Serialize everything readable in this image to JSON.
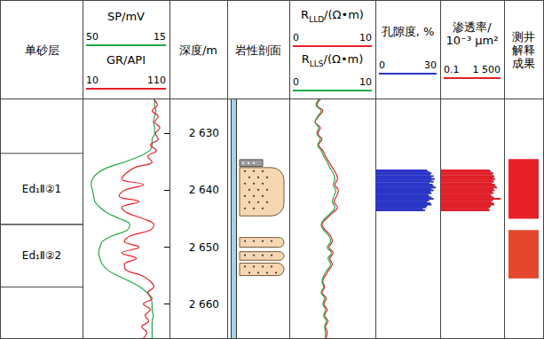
{
  "chart_data": {
    "type": "well_log",
    "ylim": [
      2624,
      2666
    ],
    "yticks": [
      {
        "value": 2630,
        "label": "2 630"
      },
      {
        "value": 2640,
        "label": "2 640"
      },
      {
        "value": 2650,
        "label": "2 650"
      },
      {
        "value": 2660,
        "label": "2 660"
      }
    ],
    "depth_title": "深度/m",
    "zones": {
      "title": "单砂层",
      "intervals": [
        {
          "name": "Ed₁Ⅱ②1",
          "top": 2633.5,
          "bottom": 2646
        },
        {
          "name": "Ed₁Ⅱ②2",
          "top": 2646,
          "bottom": 2657
        }
      ]
    },
    "lithology": {
      "title": "岩性剖面",
      "sand": [
        [
          2636,
          2644.5
        ],
        [
          2648.3,
          2650
        ],
        [
          2650.8,
          2652.3
        ],
        [
          2652.8,
          2655
        ]
      ],
      "silt": [
        [
          2634.6,
          2635.8
        ]
      ]
    },
    "tracks": [
      {
        "type": "line",
        "depth": [
          2624,
          2625,
          2626,
          2627,
          2628,
          2629,
          2630,
          2631,
          2632,
          2633,
          2634,
          2635,
          2636,
          2637,
          2638,
          2639,
          2640,
          2641,
          2642,
          2643,
          2644,
          2645,
          2646,
          2647,
          2648,
          2649,
          2650,
          2651,
          2652,
          2653,
          2654,
          2655,
          2656,
          2657,
          2658,
          2659,
          2660,
          2661,
          2662,
          2663,
          2664,
          2665,
          2666
        ],
        "curves": [
          {
            "name": "SP/mV",
            "color": "#22a845",
            "xlim": [
              50,
              15
            ],
            "xticks": [
              50,
              15
            ],
            "values": [
              21,
              21,
              20.5,
              21,
              21.5,
              21,
              21,
              22,
              22,
              23,
              27,
              33,
              40,
              44,
              46,
              46.5,
              46,
              45.5,
              45,
              43,
              40,
              35,
              31,
              32,
              38,
              42,
              43,
              43.5,
              43,
              42,
              40,
              36,
              31,
              27,
              24,
              22.5,
              22,
              22,
              21.5,
              22,
              22,
              22,
              22
            ]
          },
          {
            "name": "GR/API",
            "color": "#e8202a",
            "xlim": [
              10,
              110
            ],
            "xticks": [
              10,
              110
            ],
            "values": [
              92,
              96,
              90,
              97,
              93,
              99,
              94,
              97,
              88,
              95,
              85,
              90,
              70,
              60,
              55,
              80,
              58,
              52,
              75,
              55,
              62,
              80,
              92,
              88,
              65,
              58,
              75,
              55,
              72,
              58,
              60,
              78,
              88,
              92,
              85,
              90,
              80,
              88,
              82,
              86,
              78,
              84,
              80
            ]
          }
        ]
      },
      {
        "type": "line",
        "depth": [
          2624,
          2625,
          2626,
          2627,
          2628,
          2629,
          2630,
          2631,
          2632,
          2633,
          2634,
          2635,
          2636,
          2637,
          2638,
          2639,
          2640,
          2641,
          2642,
          2643,
          2644,
          2645,
          2646,
          2647,
          2648,
          2649,
          2650,
          2651,
          2652,
          2653,
          2654,
          2655,
          2656,
          2657,
          2658,
          2659,
          2660,
          2661,
          2662,
          2663,
          2664,
          2665,
          2666
        ],
        "curves": [
          {
            "name": {
              "text": "R",
              "sub": "LLD",
              "rest": "/(Ω•m)"
            },
            "color": "#e8202a",
            "xlim": [
              0,
              10
            ],
            "xticks": [
              0,
              10
            ],
            "values": [
              3.6,
              3.2,
              3.9,
              3.4,
              3,
              3.6,
              3.3,
              3.8,
              3.4,
              3.9,
              4.2,
              4.6,
              5,
              5.4,
              5.6,
              5.3,
              5.7,
              5.5,
              5.2,
              5.6,
              5,
              4.3,
              3.8,
              4.2,
              4.8,
              5,
              4.6,
              5.1,
              4.7,
              5,
              4.6,
              4.2,
              3.9,
              4.1,
              3.8,
              4.3,
              4,
              4.4,
              4.1,
              4.5,
              4.2,
              4.4,
              4.3
            ]
          },
          {
            "name": {
              "text": "R",
              "sub": "LLS",
              "rest": "/(Ω•m)"
            },
            "color": "#22a845",
            "xlim": [
              0,
              10
            ],
            "xticks": [
              0,
              10
            ],
            "values": [
              3.4,
              3.1,
              3.7,
              3.3,
              3,
              3.4,
              3.2,
              3.6,
              3.3,
              3.7,
              4,
              4.4,
              4.7,
              5.1,
              5.3,
              5.1,
              5.4,
              5.2,
              5,
              5.3,
              4.8,
              4.1,
              3.7,
              4,
              4.6,
              4.8,
              4.4,
              4.9,
              4.5,
              4.8,
              4.4,
              4,
              3.8,
              4,
              3.7,
              4.1,
              3.9,
              4.2,
              4,
              4.3,
              4.1,
              4.2,
              4.2
            ]
          }
        ]
      },
      {
        "type": "bar",
        "depth": [
          2636.5,
          2636.75,
          2637,
          2637.25,
          2637.5,
          2637.75,
          2638,
          2638.25,
          2638.5,
          2638.75,
          2639,
          2639.25,
          2639.5,
          2639.75,
          2640,
          2640.25,
          2640.5,
          2640.75,
          2641,
          2641.25,
          2641.5,
          2641.75,
          2642,
          2642.25,
          2642.5,
          2642.75,
          2643,
          2643.25,
          2643.5
        ],
        "curves": [
          {
            "name": "孔隙度, %",
            "color": "#2b35c8",
            "xlim": [
              0,
              30
            ],
            "xticks": [
              0,
              30
            ],
            "values": [
              24,
              25,
              26,
              25.5,
              27,
              26,
              27.5,
              26,
              27,
              25,
              26.5,
              27,
              28,
              26,
              27,
              25.5,
              26,
              24.5,
              25,
              26,
              27,
              25,
              24,
              25.5,
              26,
              24,
              23.5,
              22,
              23
            ]
          }
        ]
      },
      {
        "type": "bar",
        "log": "x",
        "depth": [
          2636.5,
          2636.75,
          2637,
          2637.25,
          2637.5,
          2637.75,
          2638,
          2638.25,
          2638.5,
          2638.75,
          2639,
          2639.25,
          2639.5,
          2639.75,
          2640,
          2640.25,
          2640.5,
          2640.75,
          2641,
          2641.25,
          2641.5,
          2641.75,
          2642,
          2642.25,
          2642.5,
          2642.75,
          2643,
          2643.25,
          2643.5
        ],
        "curves": [
          {
            "name": "渗透率/10⁻³ μm²",
            "color": "#e0202a",
            "xlim": [
              0.1,
              1500
            ],
            "xticks": [
              0.1,
              {
                "value": 1500,
                "label": "1 500"
              }
            ],
            "values": [
              180,
              220,
              300,
              260,
              350,
              310,
              400,
              280,
              330,
              250,
              380,
              420,
              520,
              300,
              360,
              260,
              310,
              200,
              240,
              330,
              900,
              280,
              220,
              300,
              350,
              210,
              180,
              150,
              170
            ]
          }
        ]
      }
    ],
    "interpretation": {
      "title": "测井解释成果",
      "intervals": [
        {
          "top": 2634.5,
          "bottom": 2645,
          "color": "#e8202a"
        },
        {
          "top": 2647,
          "bottom": 2655.5,
          "color": "#e4472c"
        }
      ]
    }
  }
}
